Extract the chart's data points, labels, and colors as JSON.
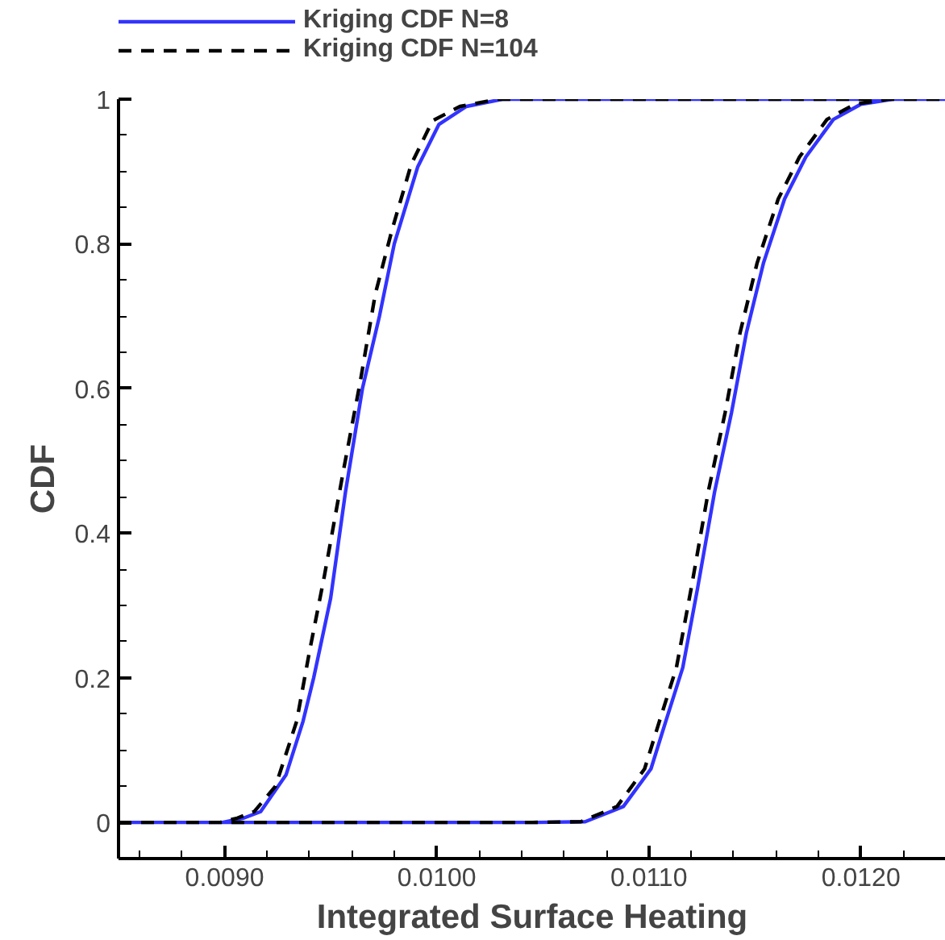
{
  "chart_data": {
    "type": "line",
    "xlabel": "Integrated Surface Heating",
    "ylabel": "CDF",
    "xlim": [
      0.0085,
      0.0124
    ],
    "ylim": [
      -0.05,
      1
    ],
    "xticks": [
      {
        "value": 0.009,
        "label": "0.0090"
      },
      {
        "value": 0.01,
        "label": "0.0100"
      },
      {
        "value": 0.011,
        "label": "0.0110"
      },
      {
        "value": 0.012,
        "label": "0.0120"
      }
    ],
    "yticks": [
      0,
      0.2,
      0.4,
      0.6,
      0.8,
      1
    ],
    "grid": false,
    "legend": "top left",
    "series": [
      {
        "name": "Kriging CDF N=8",
        "color": "#3333ff",
        "line_style": "solid",
        "x": [
          0.0085,
          0.00899,
          0.00909,
          0.00917,
          0.00929,
          0.00937,
          0.00942,
          0.0095,
          0.00957,
          0.00965,
          0.00973,
          0.0098,
          0.00991,
          0.01001,
          0.01014,
          0.01031,
          0.0124,
          null,
          0.0085,
          0.01047,
          0.0107,
          0.01088,
          0.01101,
          0.01108,
          0.01116,
          0.01123,
          0.01131,
          0.01139,
          0.01146,
          0.01154,
          0.01164,
          0.01174,
          0.01187,
          0.012,
          0.01215,
          0.0124
        ],
        "values": [
          0,
          0,
          0.006,
          0.015,
          0.066,
          0.14,
          0.2,
          0.31,
          0.457,
          0.6,
          0.7,
          0.8,
          0.906,
          0.965,
          0.99,
          1,
          1,
          null,
          0,
          0,
          0.001,
          0.022,
          0.074,
          0.14,
          0.214,
          0.324,
          0.457,
          0.567,
          0.677,
          0.773,
          0.862,
          0.92,
          0.972,
          0.993,
          1,
          1
        ]
      },
      {
        "name": "Kriging CDF N=104",
        "color": "#000000",
        "line_style": "dashed",
        "x": [
          0.0085,
          0.00898,
          0.00906,
          0.00914,
          0.00924,
          0.00934,
          0.0094,
          0.00947,
          0.00956,
          0.00964,
          0.00971,
          0.00979,
          0.00988,
          0.00998,
          0.01011,
          0.01029,
          0.0124,
          null,
          0.0085,
          0.01045,
          0.01068,
          0.01085,
          0.01098,
          0.01105,
          0.01113,
          0.0112,
          0.01128,
          0.01136,
          0.01143,
          0.01151,
          0.01161,
          0.01171,
          0.01184,
          0.01197,
          0.01213,
          0.0124
        ],
        "values": [
          0,
          0,
          0.006,
          0.015,
          0.05,
          0.14,
          0.236,
          0.34,
          0.486,
          0.61,
          0.73,
          0.82,
          0.91,
          0.97,
          0.99,
          1,
          1,
          null,
          0,
          0,
          0.001,
          0.022,
          0.074,
          0.14,
          0.214,
          0.324,
          0.457,
          0.567,
          0.677,
          0.773,
          0.862,
          0.92,
          0.972,
          0.993,
          1,
          1
        ]
      }
    ]
  }
}
